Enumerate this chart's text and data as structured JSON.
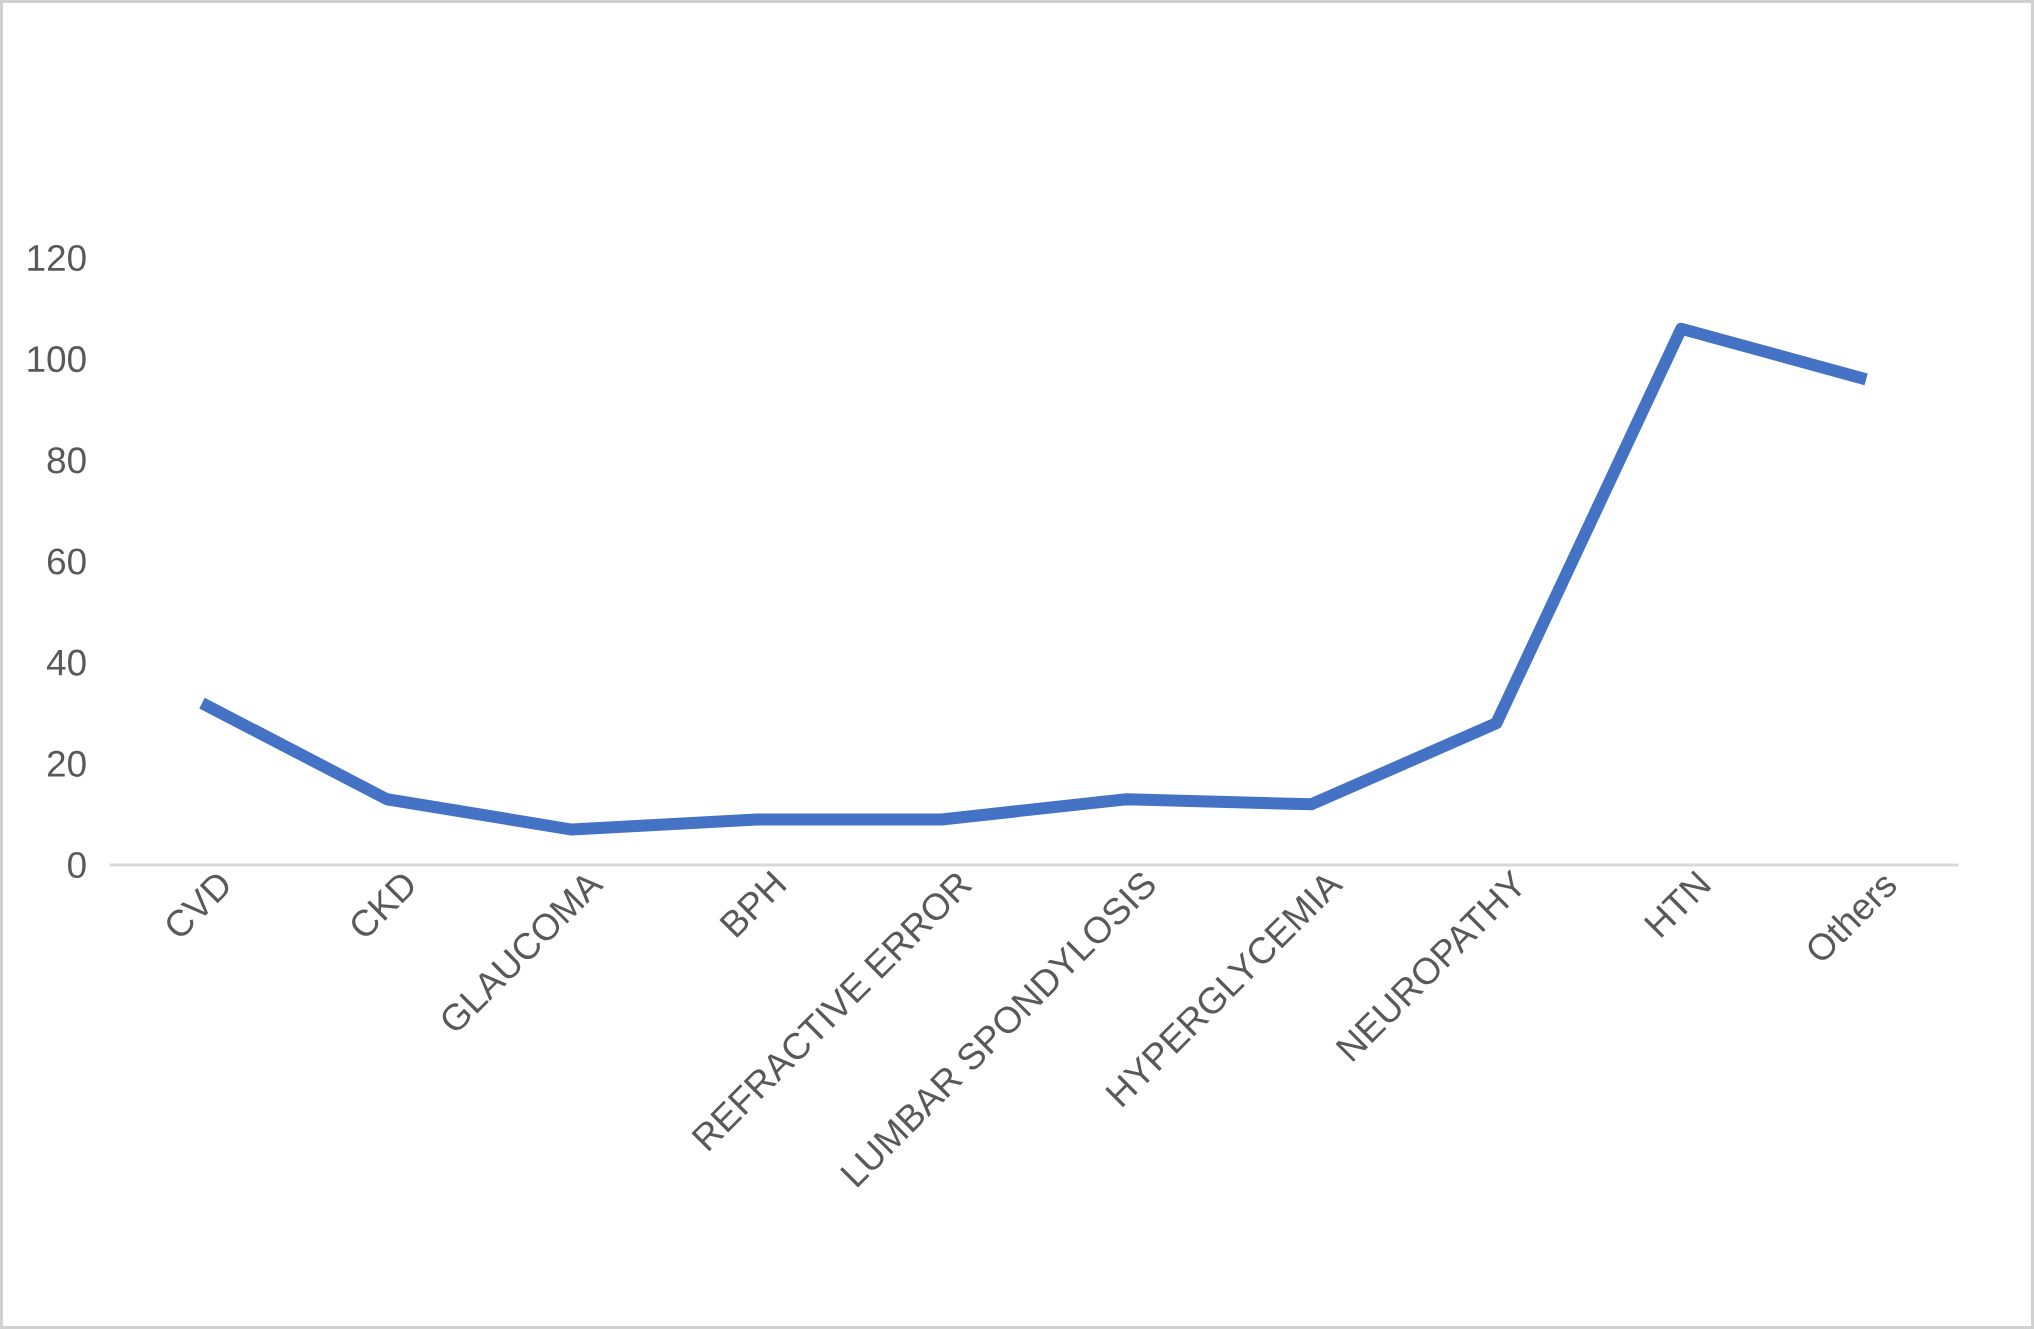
{
  "chart_data": {
    "type": "line",
    "categories": [
      "CVD",
      "CKD",
      "GLAUCOMA",
      "BPH",
      "REFRACTIVE ERROR",
      "LUMBAR SPONDYLOSIS",
      "HYPERGLYCEMIA",
      "NEUROPATHY",
      "HTN",
      "Others"
    ],
    "values": [
      32,
      13,
      7,
      9,
      9,
      13,
      12,
      28,
      106,
      96
    ],
    "color": "#4472c4",
    "ylim": [
      0,
      120
    ],
    "yticks": [
      0,
      20,
      40,
      60,
      80,
      100,
      120
    ]
  }
}
